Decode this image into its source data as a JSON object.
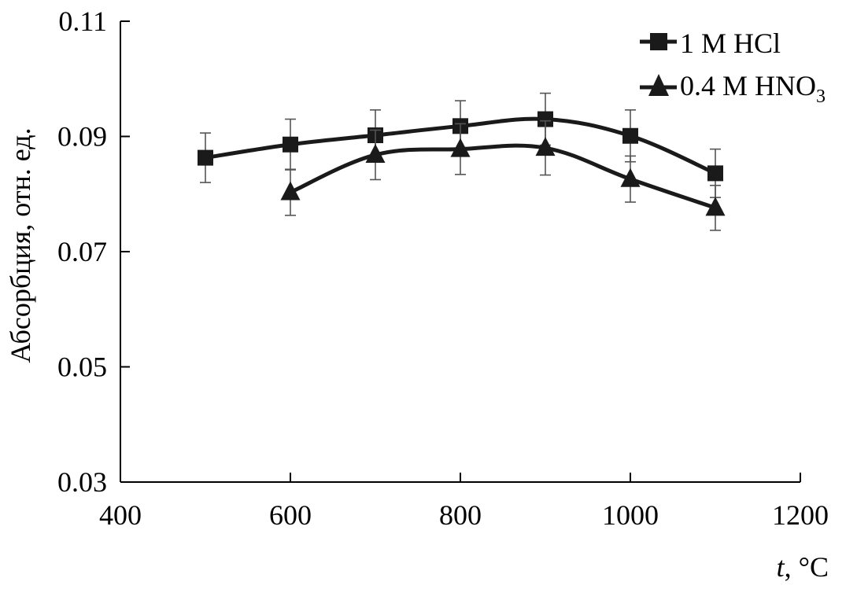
{
  "chart_data": {
    "type": "line",
    "title": "",
    "xlabel_var": "t",
    "xlabel_unit": ", °C",
    "ylabel": "Абсорбция, отн. ед.",
    "xlim": [
      400,
      1200
    ],
    "ylim": [
      0.03,
      0.11
    ],
    "xticks": [
      400,
      600,
      800,
      1000,
      1200
    ],
    "xtick_labels": [
      "400",
      "600",
      "800",
      "1000",
      "1200"
    ],
    "yticks": [
      0.03,
      0.05,
      0.07,
      0.09,
      0.11
    ],
    "ytick_labels": [
      "0.03",
      "0.05",
      "0.07",
      "0.09",
      "0.11"
    ],
    "grid": false,
    "legend_position": "top-right",
    "series": [
      {
        "name": "1 M HCl",
        "marker": "square",
        "color": "#1a1a1a",
        "x": [
          500,
          600,
          700,
          800,
          900,
          1000,
          1100
        ],
        "y": [
          0.0863,
          0.0886,
          0.0902,
          0.0918,
          0.093,
          0.0901,
          0.0836
        ],
        "yerr": [
          0.0043,
          0.0044,
          0.0044,
          0.0044,
          0.0045,
          0.0045,
          0.0042
        ]
      },
      {
        "name": "0.4 M HNO",
        "name_subscript": "3",
        "marker": "triangle",
        "color": "#1a1a1a",
        "x": [
          600,
          700,
          800,
          900,
          1000,
          1100
        ],
        "y": [
          0.0803,
          0.0868,
          0.0878,
          0.088,
          0.0826,
          0.0776
        ],
        "yerr": [
          0.004,
          0.0043,
          0.0044,
          0.0047,
          0.004,
          0.0039
        ]
      }
    ]
  }
}
